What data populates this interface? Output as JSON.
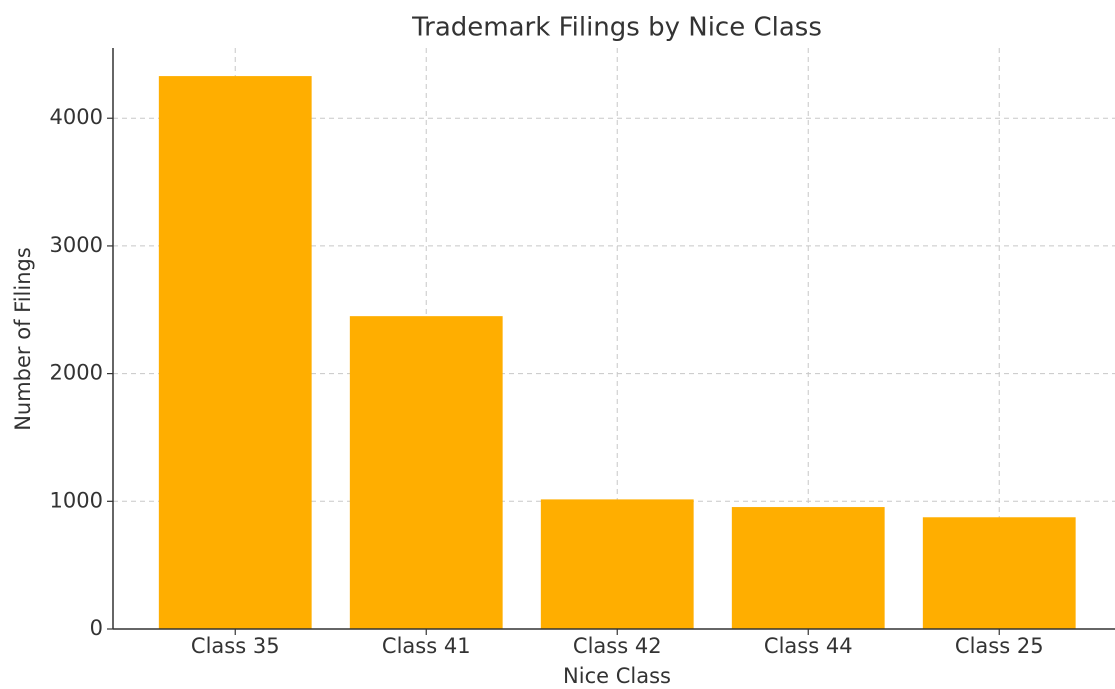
{
  "chart_data": {
    "type": "bar",
    "title": "Trademark Filings by Nice Class",
    "x_label": "Nice Class",
    "y_label": "Number of Filings",
    "categories": [
      "Class 35",
      "Class 41",
      "Class 42",
      "Class 44",
      "Class 25"
    ],
    "values": [
      4330,
      2450,
      1015,
      955,
      875
    ],
    "color": "#ffae00",
    "ylim": [
      0,
      4550
    ],
    "yticks": [
      0,
      1000,
      2000,
      3000,
      4000
    ],
    "grid": true
  }
}
